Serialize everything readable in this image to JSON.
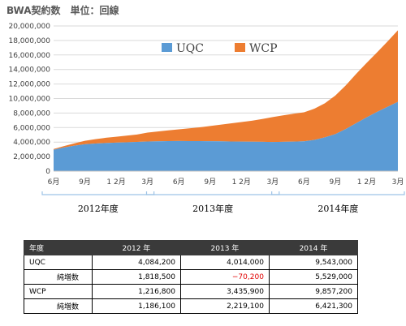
{
  "chart_data": {
    "type": "area",
    "title": "BWA契約数　単位：回線",
    "stacked": true,
    "x": [
      "2012-06",
      "2012-07",
      "2012-08",
      "2012-09",
      "2012-10",
      "2012-11",
      "2012-12",
      "2013-01",
      "2013-02",
      "2013-03",
      "2013-04",
      "2013-05",
      "2013-06",
      "2013-07",
      "2013-08",
      "2013-09",
      "2013-10",
      "2013-11",
      "2013-12",
      "2014-01",
      "2014-02",
      "2014-03",
      "2014-04",
      "2014-05",
      "2014-06",
      "2014-07",
      "2014-08",
      "2014-09",
      "2014-10",
      "2014-11",
      "2014-12",
      "2015-01",
      "2015-02",
      "2015-03"
    ],
    "x_tick_labels": [
      "6月",
      "9月",
      "1 2月",
      "3月",
      "6月",
      "9月",
      "1 2月",
      "3月",
      "6月",
      "9月",
      "1 2月",
      "3月"
    ],
    "x_tick_index": [
      0,
      3,
      6,
      9,
      12,
      15,
      18,
      21,
      24,
      27,
      30,
      33
    ],
    "group_labels": [
      {
        "label": "2012年度",
        "from": 0,
        "to": 9
      },
      {
        "label": "2013年度",
        "from": 10,
        "to": 21
      },
      {
        "label": "2014年度",
        "from": 22,
        "to": 33
      }
    ],
    "ylim": [
      0,
      20000000
    ],
    "yticks": [
      0,
      2000000,
      4000000,
      6000000,
      8000000,
      10000000,
      12000000,
      14000000,
      16000000,
      18000000,
      20000000
    ],
    "ytick_labels": [
      "0",
      "2,000,000",
      "4,000,000",
      "6,000,000",
      "8,000,000",
      "10,000,000",
      "12,000,000",
      "14,000,000",
      "16,000,000",
      "18,000,000",
      "20,000,000"
    ],
    "grid": true,
    "legend_position": "top",
    "series": [
      {
        "name": "UQC",
        "color": "#5b9bd5",
        "values": [
          2950000,
          3250000,
          3500000,
          3700000,
          3800000,
          3870000,
          3920000,
          3970000,
          4020000,
          4084200,
          4110000,
          4130000,
          4150000,
          4140000,
          4130000,
          4120000,
          4100000,
          4080000,
          4060000,
          4045000,
          4030000,
          4014000,
          4030000,
          4060000,
          4100000,
          4300000,
          4650000,
          5100000,
          5800000,
          6600000,
          7400000,
          8150000,
          8850000,
          9543000
        ]
      },
      {
        "name": "WCP",
        "color": "#ed7d31",
        "values": [
          100000,
          200000,
          330000,
          470000,
          600000,
          720000,
          820000,
          920000,
          1020000,
          1216800,
          1350000,
          1480000,
          1600000,
          1760000,
          1900000,
          2100000,
          2300000,
          2500000,
          2700000,
          2900000,
          3150000,
          3435900,
          3650000,
          3850000,
          4000000,
          4300000,
          4700000,
          5300000,
          6000000,
          6800000,
          7500000,
          8200000,
          9000000,
          9857200
        ]
      }
    ]
  },
  "table": {
    "headers": [
      "年度",
      "2012 年",
      "2013 年",
      "2014 年"
    ],
    "rows": [
      {
        "label": "UQC",
        "values": [
          "4,084,200",
          "4,014,000",
          "9,543,000"
        ]
      },
      {
        "label": "純増数",
        "values": [
          "1,818,500",
          "−70,200",
          "5,529,000"
        ]
      },
      {
        "label": "WCP",
        "values": [
          "1,216,800",
          "3,435,900",
          "9,857,200"
        ]
      },
      {
        "label": "純増数",
        "values": [
          "1,186,100",
          "2,219,100",
          "6,421,300"
        ]
      }
    ]
  }
}
